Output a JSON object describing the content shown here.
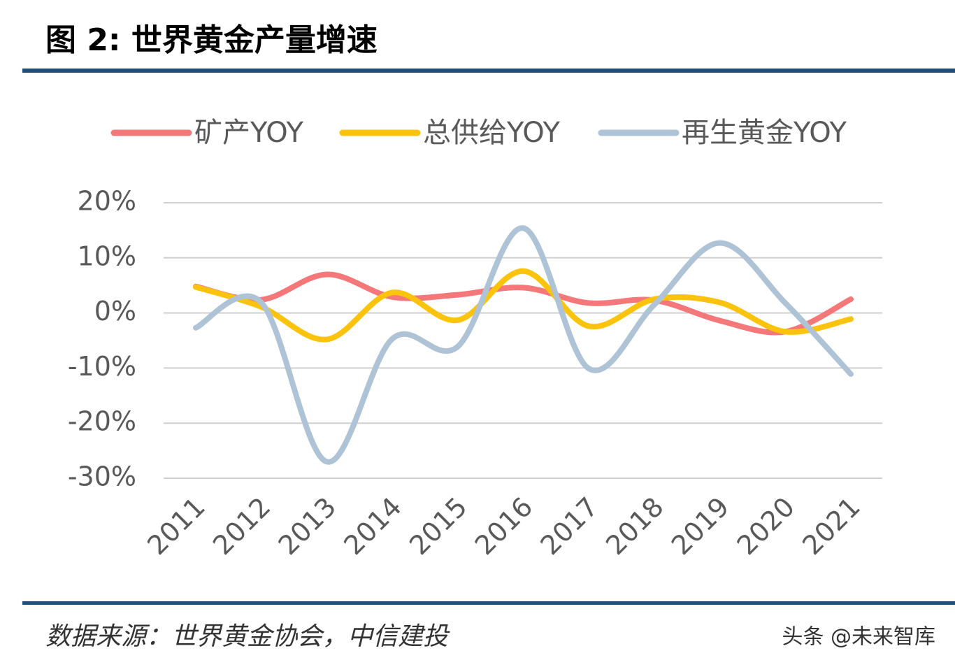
{
  "chart_data": {
    "type": "line",
    "title": "图 2: 世界黄金产量增速",
    "source": "数据来源：世界黄金协会，中信建投",
    "watermark": "头条 @未来智库",
    "categories": [
      "2011",
      "2012",
      "2013",
      "2014",
      "2015",
      "2016",
      "2017",
      "2018",
      "2019",
      "2020",
      "2021"
    ],
    "series": [
      {
        "name": "矿产YOY",
        "color": "#f4777a",
        "values": [
          4.8,
          2.4,
          7.0,
          2.9,
          3.3,
          4.6,
          1.8,
          2.3,
          -1.4,
          -3.4,
          2.5
        ]
      },
      {
        "name": "总供给YOY",
        "color": "#fbc30c",
        "values": [
          4.7,
          1.1,
          -4.8,
          3.7,
          -1.3,
          7.6,
          -2.4,
          2.5,
          1.9,
          -3.4,
          -1.1
        ]
      },
      {
        "name": "再生黄金YOY",
        "color": "#aec3d6",
        "values": [
          -2.7,
          1.9,
          -27.0,
          -4.7,
          -6.1,
          15.4,
          -10.1,
          1.5,
          12.7,
          1.8,
          -11.1
        ]
      }
    ],
    "ylim": [
      -30,
      20
    ],
    "yticks": [
      {
        "value": -30,
        "label": "-30%"
      },
      {
        "value": -20,
        "label": "-20%"
      },
      {
        "value": -10,
        "label": "-10%"
      },
      {
        "value": 0,
        "label": "0%"
      },
      {
        "value": 10,
        "label": "10%"
      },
      {
        "value": 20,
        "label": "20%"
      }
    ],
    "grid": true,
    "legend": "top"
  }
}
